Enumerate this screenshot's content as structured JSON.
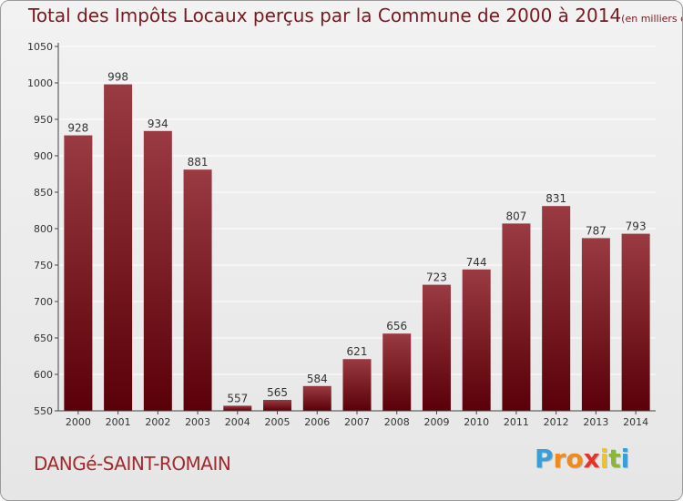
{
  "title": {
    "main": "Total des Impôts Locaux perçus par la Commune de 2000 à 2014",
    "unit": "(en milliers d'€)"
  },
  "commune_name": "DANGé-SAINT-ROMAIN",
  "logo": {
    "letters": [
      "P",
      "r",
      "o",
      "x",
      "i",
      "t",
      "i"
    ],
    "colors": [
      "#3a9fd6",
      "#f08a1c",
      "#f08a1c",
      "#e2342a",
      "#f0c419",
      "#8ab833",
      "#3a9fd6"
    ]
  },
  "colors": {
    "bar_top": "#9a3a42",
    "bar_bottom": "#5a0008",
    "axis": "#444444",
    "grid": "#ffffff"
  },
  "chart_data": {
    "type": "bar",
    "title": "Total des Impôts Locaux perçus par la Commune de 2000 à 2014",
    "xlabel": "",
    "ylabel": "",
    "categories": [
      "2000",
      "2001",
      "2002",
      "2003",
      "2004",
      "2005",
      "2006",
      "2007",
      "2008",
      "2009",
      "2010",
      "2011",
      "2012",
      "2013",
      "2014"
    ],
    "values": [
      928,
      998,
      934,
      881,
      557,
      565,
      584,
      621,
      656,
      723,
      744,
      807,
      831,
      787,
      793
    ],
    "ylim": [
      550,
      1050
    ],
    "yticks": [
      550,
      600,
      650,
      700,
      750,
      800,
      850,
      900,
      950,
      1000,
      1050
    ],
    "grid": true,
    "legend": "none"
  }
}
